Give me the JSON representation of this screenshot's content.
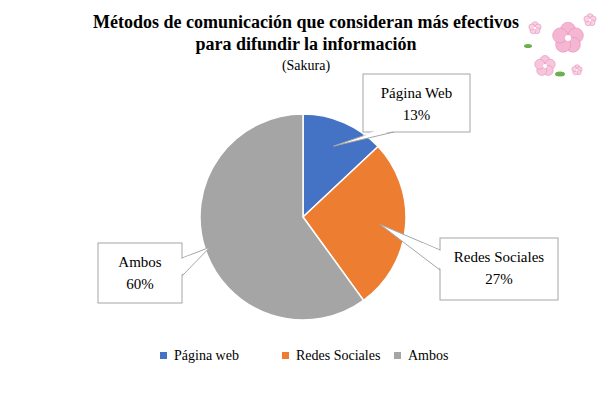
{
  "chart_data": {
    "type": "pie",
    "title": [
      "Métodos de comunicación que consideran más efectivos",
      "para difundir la información"
    ],
    "subtitle": "(Sakura)",
    "categories": [
      "Página Web",
      "Redes Sociales",
      "Ambos"
    ],
    "legend_labels": [
      "Página web",
      "Redes Sociales",
      "Ambos"
    ],
    "values": [
      13,
      27,
      60
    ],
    "value_labels": [
      "13%",
      "27%",
      "60%"
    ],
    "colors": [
      "#4472c4",
      "#ed7d31",
      "#a5a5a5"
    ],
    "data_labels": true,
    "legend": "bottom"
  }
}
